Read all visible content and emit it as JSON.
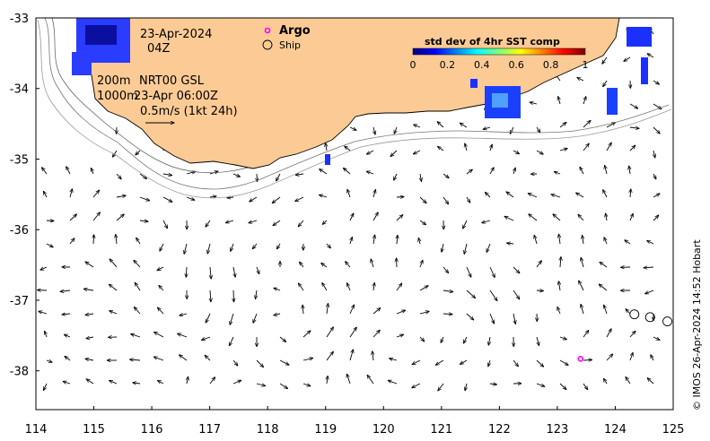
{
  "map": {
    "date_label": "23-Apr-2024",
    "time_label": "04Z",
    "depth_line1": "200m",
    "product": "NRT00 GSL",
    "depth_line2": "1000m",
    "product_time": "23-Apr 06:00Z",
    "scale_label": "0.5m/s (1kt 24h)",
    "credit": "© IMOS 26-Apr-2024 14:52 Hobart",
    "axes": {
      "x_ticks": [
        "114",
        "115",
        "116",
        "117",
        "118",
        "119",
        "120",
        "121",
        "122",
        "123",
        "124",
        "125"
      ],
      "y_ticks": [
        "-33",
        "-34",
        "-35",
        "-36",
        "-37",
        "-38"
      ],
      "xlim": [
        114,
        125
      ],
      "ylim": [
        -38.55,
        -33
      ]
    },
    "legend": {
      "argo_label": "Argo",
      "ship_label": "Ship",
      "argo_color": "#ff00ff"
    },
    "colorbar": {
      "title": "std dev of 4hr SST comp",
      "ticks": [
        "0",
        "0.2",
        "0.4",
        "0.6",
        "0.8",
        "1"
      ],
      "colors": [
        "#00007f",
        "#0000ff",
        "#007fff",
        "#00ffff",
        "#7fff7f",
        "#ffff00",
        "#ff7f00",
        "#ff0000",
        "#7f0000"
      ]
    },
    "land_color": "#fccb95",
    "argo_floats": [
      [
        123.4,
        -37.83
      ]
    ],
    "ships": [
      [
        124.33,
        -37.2
      ],
      [
        124.6,
        -37.24
      ],
      [
        124.9,
        -37.3
      ]
    ]
  }
}
